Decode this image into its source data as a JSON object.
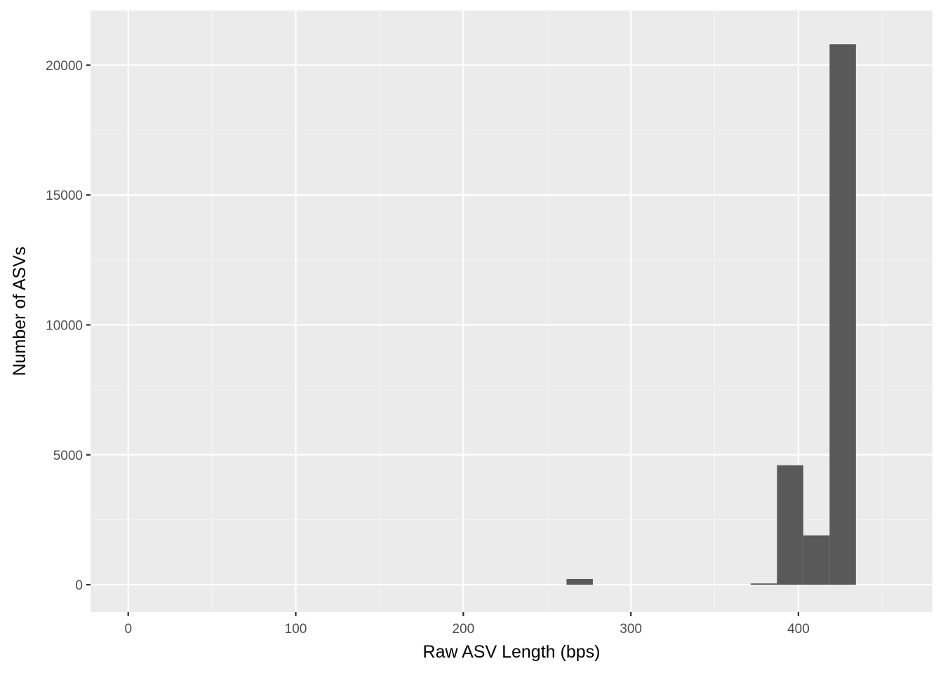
{
  "chart_data": {
    "type": "bar",
    "subtype": "histogram",
    "title": "",
    "xlabel": "Raw ASV Length (bps)",
    "ylabel": "Number of ASVs",
    "xlim": [
      -22.5,
      480
    ],
    "ylim": [
      -1050,
      22100
    ],
    "x_ticks": [
      0,
      100,
      200,
      300,
      400
    ],
    "x_tick_labels": [
      "0",
      "100",
      "200",
      "300",
      "400"
    ],
    "y_ticks": [
      0,
      5000,
      10000,
      15000,
      20000
    ],
    "y_tick_labels": [
      "0",
      "5000",
      "10000",
      "15000",
      "20000"
    ],
    "bin_width": 15.7,
    "bins": [
      {
        "x_start": 261.6,
        "x_end": 277.3,
        "count": 220
      },
      {
        "x_start": 371.5,
        "x_end": 387.2,
        "count": 50
      },
      {
        "x_start": 387.2,
        "x_end": 402.9,
        "count": 4600
      },
      {
        "x_start": 402.9,
        "x_end": 418.6,
        "count": 1900
      },
      {
        "x_start": 418.6,
        "x_end": 434.3,
        "count": 20800
      }
    ],
    "grid": true,
    "legend": "none",
    "colors": {
      "panel_background": "#ebebeb",
      "grid_major": "#ffffff",
      "grid_minor": "#f5f5f5",
      "bar_fill": "#595959",
      "tick_mark": "#333333"
    }
  }
}
